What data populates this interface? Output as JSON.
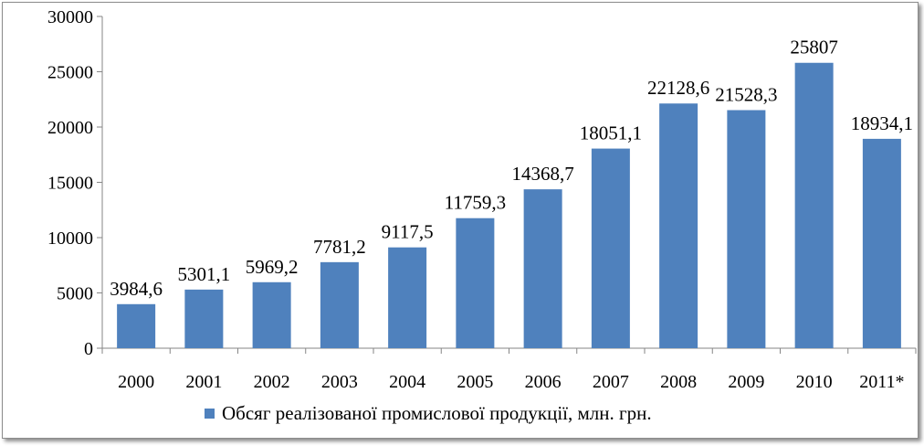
{
  "chart_data": {
    "type": "bar",
    "title": "",
    "xlabel": "",
    "ylabel": "",
    "categories": [
      "2000",
      "2001",
      "2002",
      "2003",
      "2004",
      "2005",
      "2006",
      "2007",
      "2008",
      "2009",
      "2010",
      "2011*"
    ],
    "series": [
      {
        "name": "Обсяг реалізованої промислової продукції, млн. грн.",
        "values": [
          3984.6,
          5301.1,
          5969.2,
          7781.2,
          9117.5,
          11759.3,
          14368.7,
          18051.1,
          22128.6,
          21528.3,
          25807,
          18934.1
        ],
        "labels": [
          "3984,6",
          "5301,1",
          "5969,2",
          "7781,2",
          "9117,5",
          "11759,3",
          "14368,7",
          "18051,1",
          "22128,6",
          "21528,3",
          "25807",
          "18934,1"
        ],
        "color": "#4f81bd"
      }
    ],
    "ylim": [
      0,
      30000
    ],
    "yticks": [
      0,
      5000,
      10000,
      15000,
      20000,
      25000,
      30000
    ],
    "grid": false,
    "legend": "bottom-center"
  }
}
